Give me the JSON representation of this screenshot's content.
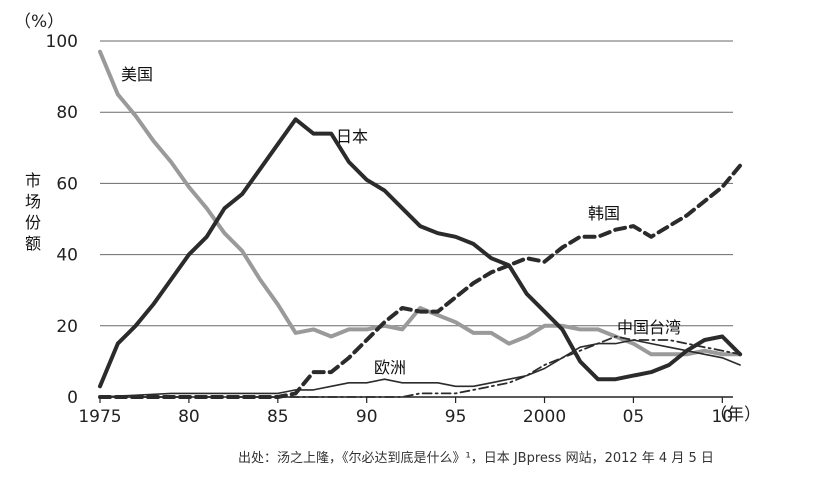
{
  "chart_data": {
    "type": "line",
    "ylabel": "市场份额",
    "y_unit": "（%）",
    "x_unit": "（年）",
    "ylim": [
      0,
      100
    ],
    "xlim": [
      1975,
      2012
    ],
    "x_tick_values": [
      1975,
      1980,
      1985,
      1990,
      1995,
      2000,
      2005,
      2010
    ],
    "x_tick_labels": [
      "1975",
      "80",
      "85",
      "90",
      "95",
      "2000",
      "05",
      "10"
    ],
    "y_ticks": [
      0,
      20,
      40,
      60,
      80,
      100
    ],
    "grid": true,
    "source": "出处：汤之上隆，《尔必达到底是什么》¹，日本 JBpress 网站，2012 年 4 月 5 日",
    "series": [
      {
        "name": "美国",
        "color": "#9a9a9a",
        "style": "solid-thick",
        "x": [
          1975,
          1976,
          1977,
          1978,
          1979,
          1980,
          1981,
          1982,
          1983,
          1984,
          1985,
          1986,
          1987,
          1988,
          1989,
          1990,
          1991,
          1992,
          1993,
          1994,
          1995,
          1996,
          1997,
          1998,
          1999,
          2000,
          2001,
          2002,
          2003,
          2004,
          2005,
          2006,
          2007,
          2008,
          2009,
          2010,
          2011
        ],
        "values": [
          97,
          85,
          79,
          72,
          66,
          59,
          53,
          46,
          41,
          33,
          26,
          18,
          19,
          17,
          19,
          19,
          20,
          19,
          25,
          23,
          21,
          18,
          18,
          15,
          17,
          20,
          20,
          19,
          19,
          17,
          15,
          12,
          12,
          12,
          13,
          12,
          12
        ]
      },
      {
        "name": "日本",
        "color": "#2b2b2b",
        "style": "solid-thick",
        "x": [
          1975,
          1976,
          1977,
          1978,
          1979,
          1980,
          1981,
          1982,
          1983,
          1984,
          1985,
          1986,
          1987,
          1988,
          1989,
          1990,
          1991,
          1992,
          1993,
          1994,
          1995,
          1996,
          1997,
          1998,
          1999,
          2000,
          2001,
          2002,
          2003,
          2004,
          2005,
          2006,
          2007,
          2008,
          2009,
          2010,
          2011
        ],
        "values": [
          3,
          15,
          20,
          26,
          33,
          40,
          45,
          53,
          57,
          64,
          71,
          78,
          74,
          74,
          66,
          61,
          58,
          53,
          48,
          46,
          45,
          43,
          39,
          37,
          29,
          24,
          19,
          10,
          5,
          5,
          6,
          7,
          9,
          13,
          16,
          17,
          12
        ]
      },
      {
        "name": "韩国",
        "color": "#2b2b2b",
        "style": "dashed-thick",
        "x": [
          1975,
          1985,
          1986,
          1987,
          1988,
          1989,
          1990,
          1991,
          1992,
          1993,
          1994,
          1995,
          1996,
          1997,
          1998,
          1999,
          2000,
          2001,
          2002,
          2003,
          2004,
          2005,
          2006,
          2007,
          2008,
          2009,
          2010,
          2011
        ],
        "values": [
          0,
          0,
          1,
          7,
          7,
          11,
          16,
          21,
          25,
          24,
          24,
          28,
          32,
          35,
          37,
          39,
          38,
          42,
          45,
          45,
          47,
          48,
          45,
          48,
          51,
          55,
          59,
          65
        ]
      },
      {
        "name": "欧洲",
        "color": "#2b2b2b",
        "style": "solid-thin",
        "x": [
          1975,
          1979,
          1980,
          1985,
          1986,
          1987,
          1988,
          1989,
          1990,
          1991,
          1992,
          1993,
          1994,
          1995,
          1996,
          1997,
          1998,
          1999,
          2000,
          2001,
          2002,
          2003,
          2004,
          2005,
          2006,
          2007,
          2008,
          2009,
          2010,
          2011
        ],
        "values": [
          0,
          1,
          1,
          1,
          2,
          2,
          3,
          4,
          4,
          5,
          4,
          4,
          4,
          3,
          3,
          4,
          5,
          6,
          8,
          11,
          14,
          15,
          15,
          16,
          15,
          14,
          13,
          12,
          11,
          9
        ]
      },
      {
        "name": "中国台湾",
        "color": "#2b2b2b",
        "style": "dashdot-thin",
        "x": [
          1975,
          1991,
          1992,
          1993,
          1994,
          1995,
          1996,
          1997,
          1998,
          1999,
          2000,
          2001,
          2002,
          2003,
          2004,
          2005,
          2006,
          2007,
          2008,
          2009,
          2010,
          2011
        ],
        "values": [
          0,
          0,
          0,
          1,
          1,
          1,
          2,
          3,
          4,
          6,
          9,
          11,
          13,
          15,
          17,
          16,
          16,
          16,
          15,
          14,
          13,
          12
        ]
      }
    ]
  }
}
